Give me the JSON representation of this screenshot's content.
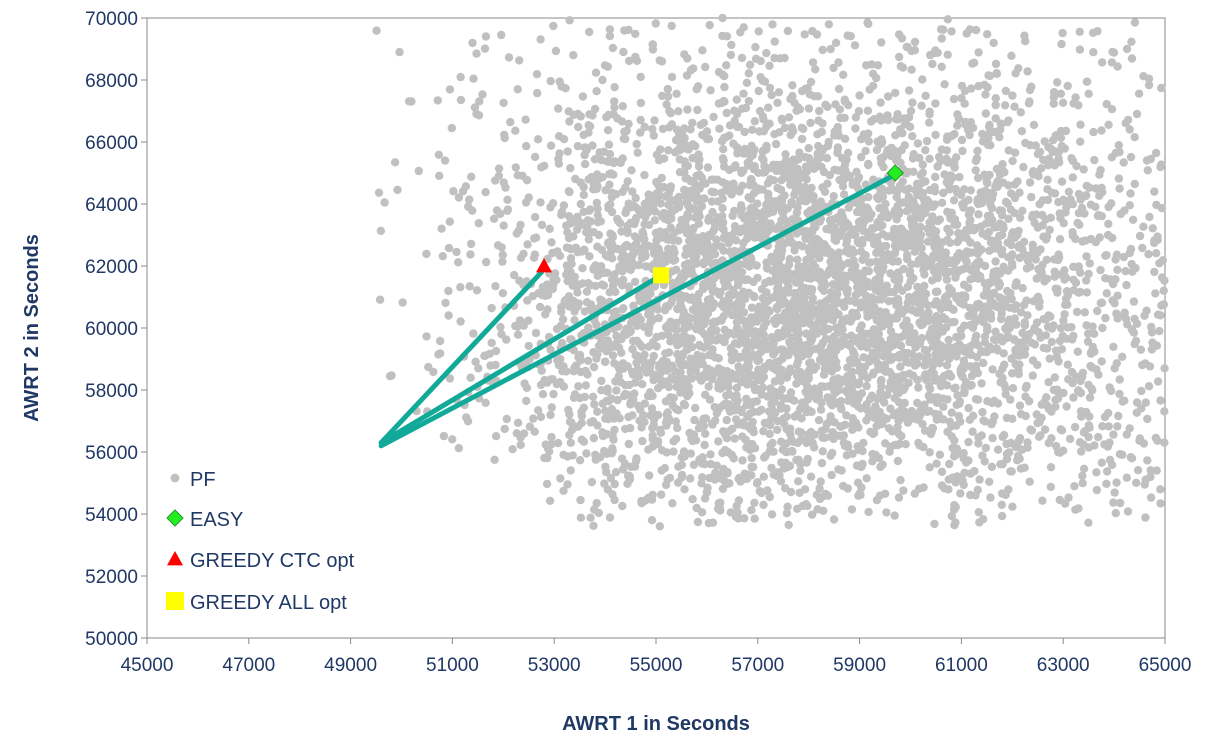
{
  "chart_data": {
    "type": "scatter",
    "title": "",
    "xlabel": "AWRT 1 in Seconds",
    "ylabel": "AWRT 2 in Seconds",
    "xlim": [
      45000,
      65000
    ],
    "ylim": [
      50000,
      70000
    ],
    "xticks": [
      45000,
      47000,
      49000,
      51000,
      53000,
      55000,
      57000,
      59000,
      61000,
      63000,
      65000
    ],
    "yticks": [
      50000,
      52000,
      54000,
      56000,
      58000,
      60000,
      62000,
      64000,
      66000,
      68000,
      70000
    ],
    "grid": false,
    "legend_position": "bottom-left",
    "colors": {
      "pf": "#c0c0c0",
      "easy": "#22ee22",
      "greedy_ctc": "#ff0000",
      "greedy_all": "#ffff00",
      "line": "#11aa99",
      "text": "#1f3864"
    },
    "series": [
      {
        "name": "PF",
        "marker": "circle",
        "cloud": {
          "approx_point_count": 5000,
          "x_range": [
            49500,
            65000
          ],
          "y_range": [
            53600,
            70000
          ],
          "center": [
            58000,
            61000
          ]
        }
      },
      {
        "name": "EASY",
        "marker": "diamond",
        "points": [
          [
            59700,
            65000
          ]
        ]
      },
      {
        "name": "GREEDY CTC opt",
        "marker": "triangle",
        "points": [
          [
            52800,
            62000
          ]
        ]
      },
      {
        "name": "GREEDY ALL opt",
        "marker": "square",
        "points": [
          [
            55100,
            61700
          ]
        ]
      }
    ],
    "annotation_lines": [
      {
        "from": [
          49600,
          56300
        ],
        "to": [
          52750,
          61800
        ]
      },
      {
        "from": [
          49600,
          56300
        ],
        "to": [
          55100,
          61700
        ]
      },
      {
        "from": [
          49600,
          56200
        ],
        "to": [
          59700,
          64950
        ]
      }
    ]
  }
}
